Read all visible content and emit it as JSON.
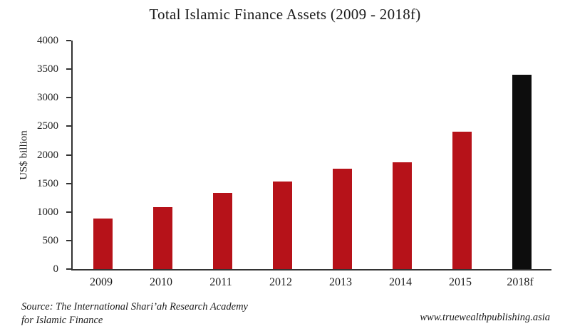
{
  "title": "Total Islamic Finance Assets (2009 - 2018f)",
  "footer": {
    "source_line1": "Source: The International Shari’ah Research Academy",
    "source_line2": "for Islamic Finance",
    "website": "www.truewealthpublishing.asia"
  },
  "colors": {
    "bar_red": "#b61219",
    "bar_black": "#0d0d0d",
    "axis": "#333333"
  },
  "chart_data": {
    "type": "bar",
    "title": "Total Islamic Finance Assets (2009 - 2018f)",
    "xlabel": "",
    "ylabel": "US$ billion",
    "categories": [
      "2009",
      "2010",
      "2011",
      "2012",
      "2013",
      "2014",
      "2015",
      "2018f"
    ],
    "values": [
      890,
      1090,
      1330,
      1530,
      1760,
      1870,
      2410,
      3400
    ],
    "bar_colors": [
      "#b61219",
      "#b61219",
      "#b61219",
      "#b61219",
      "#b61219",
      "#b61219",
      "#b61219",
      "#0d0d0d"
    ],
    "ylim": [
      0,
      4000
    ],
    "yticks": [
      0,
      500,
      1000,
      1500,
      2000,
      2500,
      3000,
      3500,
      4000
    ],
    "grid": false,
    "legend": false
  }
}
